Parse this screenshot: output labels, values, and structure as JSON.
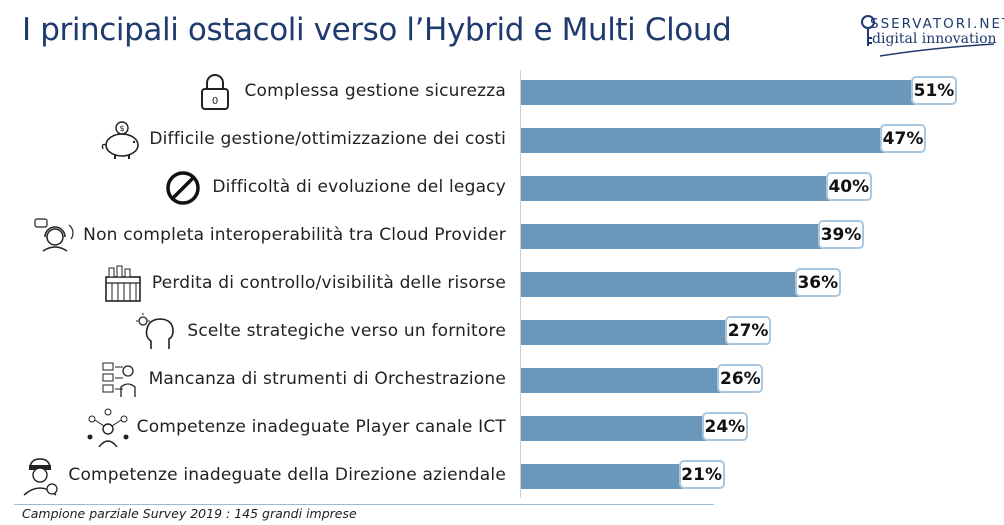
{
  "header": {
    "title": "I principali ostacoli verso l’Hybrid e Multi Cloud"
  },
  "logo": {
    "brand": "SSERVATORI.NET",
    "tagline": "digital innovation"
  },
  "footnote": "Campione parziale Survey 2019 : 145 grandi imprese",
  "colors": {
    "bar": "#6a97ba",
    "label_border": "#a9c7df",
    "title": "#1f3a6e"
  },
  "icons": [
    "lock-icon",
    "piggy-bank-icon",
    "prohibited-icon",
    "support-agent-icon",
    "control-panel-icon",
    "lightbulb-head-icon",
    "orchestration-icon",
    "network-people-icon",
    "manager-icon"
  ],
  "chart_data": {
    "type": "bar",
    "orientation": "horizontal",
    "categories": [
      "Complessa gestione sicurezza",
      "Difficile gestione/ottimizzazione dei costi",
      "Difficoltà di evoluzione del legacy",
      "Non completa interoperabilità tra Cloud Provider",
      "Perdita di controllo/visibilità delle risorse",
      "Scelte strategiche verso un fornitore",
      "Mancanza di strumenti di Orchestrazione",
      "Competenze inadeguate Player canale ICT",
      "Competenze inadeguate della Direzione aziendale"
    ],
    "values": [
      51,
      47,
      40,
      39,
      36,
      27,
      26,
      24,
      21
    ],
    "value_labels": [
      "51%",
      "47%",
      "40%",
      "39%",
      "36%",
      "27%",
      "26%",
      "24%",
      "21%"
    ],
    "xlim": [
      0,
      51
    ],
    "grid": false,
    "legend": "none"
  }
}
